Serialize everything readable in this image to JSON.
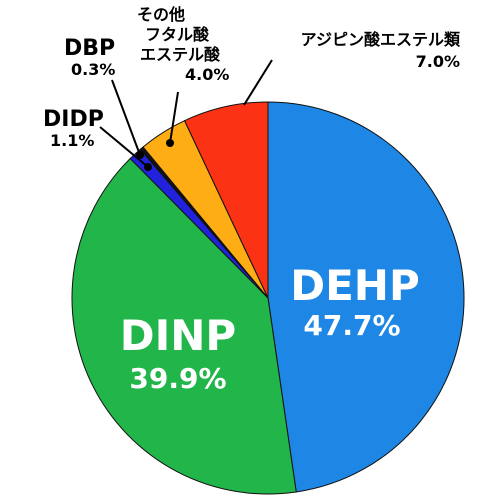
{
  "chart_data": {
    "type": "pie",
    "slices": [
      {
        "label": "DEHP",
        "value_label": "47.7%",
        "value": 47.7,
        "color": "#1e86e4"
      },
      {
        "label": "DINP",
        "value_label": "39.9%",
        "value": 39.9,
        "color": "#22b54a"
      },
      {
        "label": "DIDP",
        "value_label": "1.1%",
        "value": 1.1,
        "color": "#2222dd"
      },
      {
        "label": "DBP",
        "value_label": "0.3%",
        "value": 0.3,
        "color": "#111111"
      },
      {
        "label_lines": [
          "その他",
          "フタル酸",
          "エステル酸"
        ],
        "value_label": "4.0%",
        "value": 4.0,
        "color": "#ffad14"
      },
      {
        "label": "アジピン酸エステル類",
        "value_label": "7.0%",
        "value": 7.0,
        "color": "#fc3214"
      }
    ],
    "start": "12 o'clock",
    "direction": "clockwise"
  }
}
